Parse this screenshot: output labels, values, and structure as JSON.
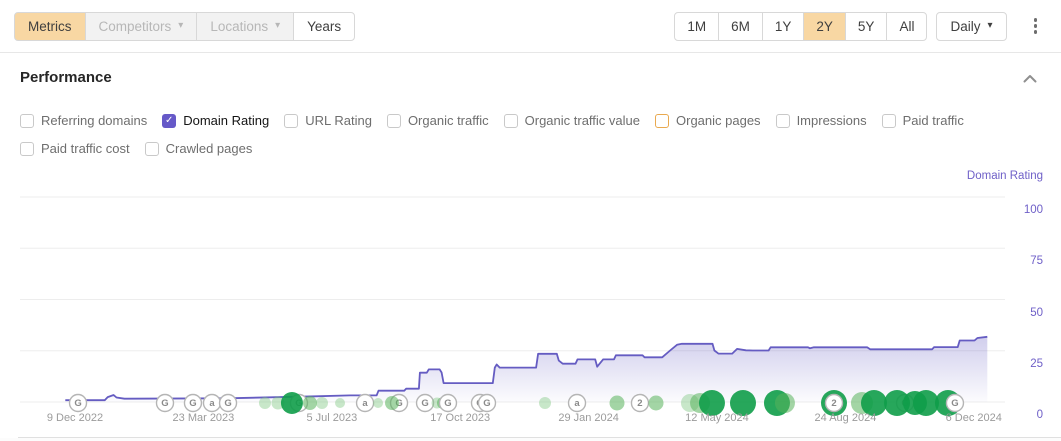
{
  "toolbar": {
    "left_buttons": [
      {
        "label": "Metrics",
        "state": "active",
        "caret": false
      },
      {
        "label": "Competitors",
        "state": "disabled",
        "caret": true
      },
      {
        "label": "Locations",
        "state": "disabled",
        "caret": true
      },
      {
        "label": "Years",
        "state": "default",
        "caret": false
      }
    ],
    "range_buttons": [
      {
        "label": "1M",
        "selected": false
      },
      {
        "label": "6M",
        "selected": false
      },
      {
        "label": "1Y",
        "selected": false
      },
      {
        "label": "2Y",
        "selected": true
      },
      {
        "label": "5Y",
        "selected": false
      },
      {
        "label": "All",
        "selected": false
      }
    ],
    "granularity_label": "Daily",
    "more_menu_icon": "kebab-vertical"
  },
  "panel": {
    "title": "Performance",
    "metrics_checkboxes": [
      {
        "label": "Referring domains",
        "checked": false,
        "accent": "none"
      },
      {
        "label": "Domain Rating",
        "checked": true,
        "accent": "purple"
      },
      {
        "label": "URL Rating",
        "checked": false,
        "accent": "none"
      },
      {
        "label": "Organic traffic",
        "checked": false,
        "accent": "none"
      },
      {
        "label": "Organic traffic value",
        "checked": false,
        "accent": "none"
      },
      {
        "label": "Organic pages",
        "checked": false,
        "accent": "orange"
      },
      {
        "label": "Impressions",
        "checked": false,
        "accent": "none"
      },
      {
        "label": "Paid traffic",
        "checked": false,
        "accent": "none"
      },
      {
        "label": "Paid traffic cost",
        "checked": false,
        "accent": "none"
      },
      {
        "label": "Crawled pages",
        "checked": false,
        "accent": "none"
      }
    ]
  },
  "colors": {
    "selected_bg": "#f8d7a3",
    "purple_accent": "#6659c8",
    "orange_outline": "#e9a94f",
    "line": "#655cc2",
    "axis_label": "#6f60c8",
    "date_label": "#9b9b9b",
    "grid": "#ededed",
    "update_dark": "#0f9d49",
    "update_mid": "#57b25b",
    "update_light": "#7bc67e",
    "badge_border": "#b5b5b5",
    "badge_text": "#8a8a8a"
  },
  "chart_data": {
    "type": "area",
    "series_name": "Domain Rating",
    "y_axis": {
      "label": "Domain Rating",
      "position": "right",
      "range": [
        0,
        100
      ],
      "ticks": [
        100,
        75,
        50,
        25,
        0
      ]
    },
    "x_axis": {
      "ticks": [
        "9 Dec 2022",
        "23 Mar 2023",
        "5 Jul 2023",
        "17 Oct 2023",
        "29 Jan 2024",
        "12 May 2024",
        "24 Aug 2024",
        "6 Dec 2024"
      ],
      "tick_pos": [
        0.0558,
        0.1862,
        0.3166,
        0.4469,
        0.5773,
        0.7076,
        0.838,
        0.9683
      ]
    },
    "grid": true,
    "points": [
      [
        0.046,
        0.9
      ],
      [
        0.086,
        0.9
      ],
      [
        0.089,
        2.4
      ],
      [
        0.095,
        3.4
      ],
      [
        0.098,
        2.2
      ],
      [
        0.106,
        1.6
      ],
      [
        0.21,
        1.8
      ],
      [
        0.3,
        2.8
      ],
      [
        0.335,
        3.2
      ],
      [
        0.362,
        3.2
      ],
      [
        0.364,
        5.5
      ],
      [
        0.39,
        5.5
      ],
      [
        0.392,
        6.5
      ],
      [
        0.405,
        6.5
      ],
      [
        0.406,
        14.3
      ],
      [
        0.413,
        14.3
      ],
      [
        0.415,
        15.9
      ],
      [
        0.426,
        15.9
      ],
      [
        0.428,
        14.4
      ],
      [
        0.43,
        9.2
      ],
      [
        0.48,
        9.2
      ],
      [
        0.482,
        16.8
      ],
      [
        0.484,
        18.3
      ],
      [
        0.487,
        16.8
      ],
      [
        0.524,
        16.8
      ],
      [
        0.526,
        23.5
      ],
      [
        0.545,
        23.5
      ],
      [
        0.547,
        20.2
      ],
      [
        0.551,
        18.7
      ],
      [
        0.564,
        18.7
      ],
      [
        0.566,
        20.8
      ],
      [
        0.584,
        20.8
      ],
      [
        0.586,
        17.2
      ],
      [
        0.592,
        20.8
      ],
      [
        0.603,
        20.8
      ],
      [
        0.605,
        22.8
      ],
      [
        0.632,
        22.8
      ],
      [
        0.634,
        21.8
      ],
      [
        0.652,
        21.8
      ],
      [
        0.66,
        25.1
      ],
      [
        0.667,
        27.9
      ],
      [
        0.672,
        28.4
      ],
      [
        0.703,
        28.4
      ],
      [
        0.705,
        25.1
      ],
      [
        0.709,
        23.6
      ],
      [
        0.723,
        23.6
      ],
      [
        0.728,
        25.9
      ],
      [
        0.737,
        25.2
      ],
      [
        0.744,
        25.1
      ],
      [
        0.76,
        25.1
      ],
      [
        0.762,
        26.7
      ],
      [
        0.8,
        26.7
      ],
      [
        0.802,
        26.2
      ],
      [
        0.806,
        26.7
      ],
      [
        0.86,
        26.7
      ],
      [
        0.863,
        25.7
      ],
      [
        0.926,
        25.7
      ],
      [
        0.928,
        26.8
      ],
      [
        0.952,
        26.8
      ],
      [
        0.954,
        30.0
      ],
      [
        0.969,
        30.0
      ],
      [
        0.972,
        31.2
      ],
      [
        0.982,
        31.8
      ]
    ],
    "markers": [
      {
        "t": "badge",
        "x": 0.0589,
        "l": "G"
      },
      {
        "t": "badge",
        "x": 0.1472,
        "l": "G"
      },
      {
        "t": "badge",
        "x": 0.1756,
        "l": "G"
      },
      {
        "t": "badge",
        "x": 0.1949,
        "l": "a"
      },
      {
        "t": "badge",
        "x": 0.2112,
        "l": "G"
      },
      {
        "t": "dot",
        "x": 0.2487,
        "s": 12,
        "tone": "light"
      },
      {
        "t": "dot",
        "x": 0.2619,
        "s": 13,
        "tone": "light"
      },
      {
        "t": "badge",
        "x": 0.2832,
        "l": "G"
      },
      {
        "t": "dot",
        "x": 0.2761,
        "s": 22,
        "tone": "dark"
      },
      {
        "t": "dot",
        "x": 0.2944,
        "s": 14,
        "tone": "mid"
      },
      {
        "t": "dot",
        "x": 0.3066,
        "s": 12,
        "tone": "light"
      },
      {
        "t": "dot",
        "x": 0.3249,
        "s": 10,
        "tone": "light"
      },
      {
        "t": "badge",
        "x": 0.3503,
        "l": "a"
      },
      {
        "t": "dot",
        "x": 0.3635,
        "s": 10,
        "tone": "light"
      },
      {
        "t": "badge",
        "x": 0.3848,
        "l": "G"
      },
      {
        "t": "dot",
        "x": 0.3777,
        "s": 14,
        "tone": "mid"
      },
      {
        "t": "badge",
        "x": 0.4112,
        "l": "G"
      },
      {
        "t": "dot",
        "x": 0.4234,
        "s": 11,
        "tone": "light"
      },
      {
        "t": "dot",
        "x": 0.4294,
        "s": 12,
        "tone": "mid"
      },
      {
        "t": "badge",
        "x": 0.4345,
        "l": "G"
      },
      {
        "t": "badge",
        "x": 0.467,
        "l": "G"
      },
      {
        "t": "badge",
        "x": 0.4741,
        "l": "G"
      },
      {
        "t": "dot",
        "x": 0.533,
        "s": 12,
        "tone": "light"
      },
      {
        "t": "badge",
        "x": 0.5655,
        "l": "a"
      },
      {
        "t": "dot",
        "x": 0.6061,
        "s": 15,
        "tone": "mid"
      },
      {
        "t": "badge",
        "x": 0.6294,
        "l": "2"
      },
      {
        "t": "dot",
        "x": 0.6457,
        "s": 15,
        "tone": "mid"
      },
      {
        "t": "dot",
        "x": 0.6802,
        "s": 18,
        "tone": "light"
      },
      {
        "t": "dot",
        "x": 0.6904,
        "s": 20,
        "tone": "mid"
      },
      {
        "t": "dot",
        "x": 0.7025,
        "s": 26,
        "tone": "dark"
      },
      {
        "t": "dot",
        "x": 0.734,
        "s": 26,
        "tone": "dark"
      },
      {
        "t": "dot",
        "x": 0.7685,
        "s": 26,
        "tone": "dark"
      },
      {
        "t": "dot",
        "x": 0.7766,
        "s": 20,
        "tone": "mid"
      },
      {
        "t": "dot",
        "x": 0.8264,
        "s": 26,
        "tone": "dark"
      },
      {
        "t": "badge",
        "x": 0.8264,
        "l": "2"
      },
      {
        "t": "dot",
        "x": 0.8548,
        "s": 22,
        "tone": "mid"
      },
      {
        "t": "dot",
        "x": 0.867,
        "s": 26,
        "tone": "dark"
      },
      {
        "t": "badge",
        "x": 0.8985,
        "l": "G"
      },
      {
        "t": "dot",
        "x": 0.8904,
        "s": 26,
        "tone": "dark"
      },
      {
        "t": "dot",
        "x": 0.9086,
        "s": 24,
        "tone": "dark"
      },
      {
        "t": "dot",
        "x": 0.9198,
        "s": 26,
        "tone": "dark"
      },
      {
        "t": "dot",
        "x": 0.9421,
        "s": 26,
        "tone": "dark"
      },
      {
        "t": "badge",
        "x": 0.9492,
        "l": "G"
      }
    ]
  }
}
